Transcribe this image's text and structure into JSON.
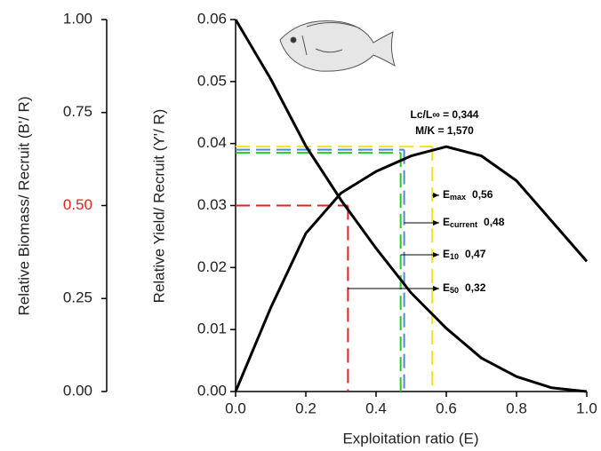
{
  "chart_data": {
    "type": "line",
    "x_label": "Exploitation ratio (E)",
    "y_label": "Relative Yield/ Recruit (Y'/ R)",
    "y2_label": "Relative Biomass/ Recruit (B'/ R)",
    "x": [
      0,
      0.1,
      0.2,
      0.3,
      0.4,
      0.5,
      0.6,
      0.7,
      0.8,
      0.9,
      1.0
    ],
    "series": [
      {
        "color": "#000000",
        "values": [
          0,
          0.0135,
          0.0255,
          0.032,
          0.0355,
          0.038,
          0.0395,
          0.038,
          0.034,
          0.0275,
          0.021
        ]
      },
      {
        "color": "#000000",
        "axis": "y2",
        "values": [
          1.0,
          0.84,
          0.66,
          0.515,
          0.385,
          0.265,
          0.17,
          0.09,
          0.04,
          0.01,
          0
        ]
      }
    ],
    "xlim": [
      0,
      1
    ],
    "xticks": [
      {
        "value": 0,
        "label": "0.0"
      },
      {
        "value": 0.2,
        "label": "0.2"
      },
      {
        "value": 0.4,
        "label": "0.4"
      },
      {
        "value": 0.6,
        "label": "0.6"
      },
      {
        "value": 0.8,
        "label": "0.8"
      },
      {
        "value": 1,
        "label": "1.0"
      }
    ],
    "ylim": [
      0,
      0.06
    ],
    "yticks": [
      {
        "value": 0,
        "label": "0.00"
      },
      {
        "value": 0.01,
        "label": "0.01"
      },
      {
        "value": 0.02,
        "label": "0.02"
      },
      {
        "value": 0.03,
        "label": "0.03"
      },
      {
        "value": 0.04,
        "label": "0.04"
      },
      {
        "value": 0.05,
        "label": "0.05"
      },
      {
        "value": 0.06,
        "label": "0.06"
      }
    ],
    "y2lim": [
      0,
      1
    ],
    "y2ticks": [
      {
        "value": 0,
        "label": "0.00"
      },
      {
        "value": 0.25,
        "label": "0.25"
      },
      {
        "value": 0.5,
        "label": "0.50",
        "color": "#e8201c"
      },
      {
        "value": 0.75,
        "label": "0.75"
      },
      {
        "value": 1,
        "label": "1.00"
      }
    ],
    "reference_points": [
      {
        "label": "E",
        "subscript": "max",
        "x": 0.56,
        "x_label": "0,56",
        "y": 0.0395,
        "color": "#f0e51c"
      },
      {
        "label": "E",
        "subscript": "current",
        "x": 0.48,
        "x_label": "0,48",
        "y": 0.039,
        "color": "#4f86d8"
      },
      {
        "label": "E",
        "subscript": "10",
        "x": 0.47,
        "x_label": "0,47",
        "y": 0.0385,
        "color": "#22cc22"
      },
      {
        "label": "E",
        "subscript": "50",
        "x": 0.32,
        "x_label": "0,32",
        "y": 0.03,
        "color": "#e8201c"
      }
    ],
    "parameters": [
      "Lc/L∞ = 0,344",
      "M/K = 1,570"
    ]
  }
}
